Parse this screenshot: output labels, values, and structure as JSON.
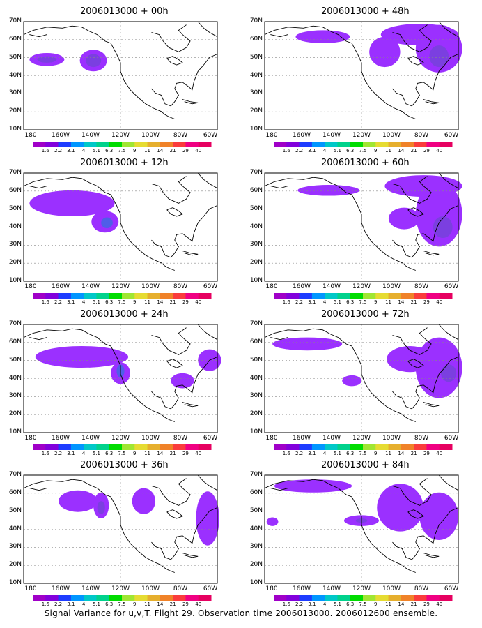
{
  "caption": "Signal Variance for u,v,T. Flight 29. Observation time 2006013000. 2006012600 ensemble.",
  "lat_labels": [
    "70N",
    "60N",
    "50N",
    "40N",
    "30N",
    "20N",
    "10N"
  ],
  "lon_labels": [
    "180",
    "160W",
    "140W",
    "120W",
    "100W",
    "80W",
    "60W"
  ],
  "colorbar": {
    "labels": [
      "1.6",
      "2.2",
      "3.1",
      "4",
      "5.1",
      "6.3",
      "7.5",
      "9",
      "11",
      "14",
      "21",
      "29",
      "40"
    ],
    "colors": [
      "#a000c8",
      "#8200dc",
      "#1e3cff",
      "#0096ff",
      "#00c8c8",
      "#00d28c",
      "#00dc00",
      "#a0e632",
      "#e6dc32",
      "#e6af2d",
      "#f08228",
      "#fa3c3c",
      "#f00082",
      "#e60060"
    ]
  },
  "shade_colors": {
    "low": "#9b30ff",
    "mid": "#7b3fe0",
    "high": "#4f5ee8"
  },
  "panels": [
    {
      "title": "2006013000 + 00h"
    },
    {
      "title": "2006013000 + 48h"
    },
    {
      "title": "2006013000 + 12h"
    },
    {
      "title": "2006013000 + 60h"
    },
    {
      "title": "2006013000 + 24h"
    },
    {
      "title": "2006013000 + 72h"
    },
    {
      "title": "2006013000 + 36h"
    },
    {
      "title": "2006013000 + 84h"
    }
  ]
}
